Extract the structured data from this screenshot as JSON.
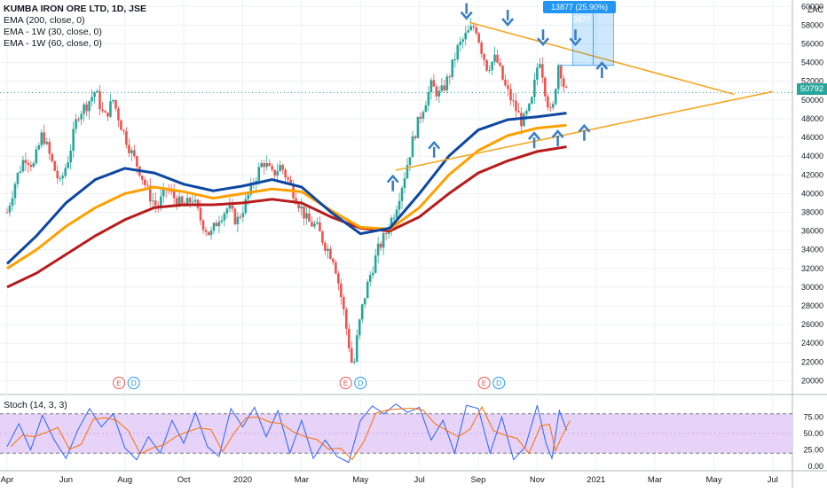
{
  "chart_data": {
    "type": "candlestick",
    "title": "KUMBA IRON ORE LTD, 1D, JSE",
    "currency": "ZAC",
    "indicators": [
      "EMA (200, close, 0)",
      "EMA - 1W (30, close, 0)",
      "EMA - 1W (60, close, 0)"
    ],
    "last_price": "50792",
    "measure_label": "13877 (25.90%) 13877",
    "price_axis": {
      "ticks": [
        "60000",
        "58000",
        "56000",
        "54000",
        "52000",
        "50000",
        "48000",
        "46000",
        "44000",
        "42000",
        "40000",
        "38000",
        "36000",
        "34000",
        "32000",
        "30000",
        "28000",
        "26000",
        "24000",
        "22000",
        "20000"
      ],
      "ylim": [
        19000,
        60500
      ]
    },
    "time_axis": [
      "Apr",
      "Jun",
      "Aug",
      "Oct",
      "2020",
      "Mar",
      "May",
      "Jul",
      "Sep",
      "Nov",
      "2021",
      "Mar",
      "May",
      "Jul"
    ],
    "earnings_markers": [
      {
        "label": "E",
        "month": 3.8
      },
      {
        "label": "D",
        "month": 4.3
      },
      {
        "label": "E",
        "month": 11.5
      },
      {
        "label": "D",
        "month": 12.0
      },
      {
        "label": "E",
        "month": 16.2
      },
      {
        "label": "D",
        "month": 16.7
      }
    ],
    "price_path": [
      [
        0.0,
        38000
      ],
      [
        0.3,
        41500
      ],
      [
        0.6,
        44000
      ],
      [
        0.9,
        43000
      ],
      [
        1.2,
        46500
      ],
      [
        1.5,
        43500
      ],
      [
        1.8,
        41000
      ],
      [
        2.1,
        44000
      ],
      [
        2.4,
        48500
      ],
      [
        2.7,
        49500
      ],
      [
        3.0,
        51000
      ],
      [
        3.3,
        48000
      ],
      [
        3.6,
        50000
      ],
      [
        3.9,
        47000
      ],
      [
        4.2,
        44500
      ],
      [
        4.5,
        42500
      ],
      [
        4.8,
        40000
      ],
      [
        5.1,
        38500
      ],
      [
        5.4,
        40500
      ],
      [
        5.7,
        39500
      ],
      [
        6.0,
        38500
      ],
      [
        6.3,
        39500
      ],
      [
        6.6,
        37000
      ],
      [
        6.9,
        35500
      ],
      [
        7.2,
        37500
      ],
      [
        7.5,
        38500
      ],
      [
        7.8,
        37000
      ],
      [
        8.1,
        39000
      ],
      [
        8.4,
        41500
      ],
      [
        8.7,
        43500
      ],
      [
        9.0,
        42000
      ],
      [
        9.3,
        43000
      ],
      [
        9.6,
        41000
      ],
      [
        9.9,
        39000
      ],
      [
        10.2,
        37000
      ],
      [
        10.5,
        36500
      ],
      [
        10.8,
        34500
      ],
      [
        11.1,
        33000
      ],
      [
        11.4,
        28000
      ],
      [
        11.6,
        24000
      ],
      [
        11.75,
        21000
      ],
      [
        11.9,
        25000
      ],
      [
        12.1,
        28500
      ],
      [
        12.3,
        31000
      ],
      [
        12.6,
        34000
      ],
      [
        12.9,
        36000
      ],
      [
        13.2,
        38500
      ],
      [
        13.5,
        42000
      ],
      [
        13.8,
        46000
      ],
      [
        14.1,
        49000
      ],
      [
        14.4,
        51500
      ],
      [
        14.7,
        50500
      ],
      [
        15.0,
        52500
      ],
      [
        15.3,
        55500
      ],
      [
        15.6,
        57000
      ],
      [
        15.9,
        58000
      ],
      [
        16.1,
        55500
      ],
      [
        16.3,
        53500
      ],
      [
        16.6,
        54500
      ],
      [
        16.9,
        51500
      ],
      [
        17.2,
        49500
      ],
      [
        17.5,
        47500
      ],
      [
        17.8,
        49500
      ],
      [
        18.0,
        53500
      ],
      [
        18.1,
        54500
      ],
      [
        18.3,
        50500
      ],
      [
        18.5,
        48000
      ],
      [
        18.6,
        51000
      ],
      [
        18.75,
        54500
      ],
      [
        18.85,
        52000
      ],
      [
        19.0,
        50792
      ]
    ],
    "ema_200": [
      [
        0,
        30000
      ],
      [
        1,
        31500
      ],
      [
        2,
        33500
      ],
      [
        3,
        35500
      ],
      [
        4,
        37200
      ],
      [
        5,
        38500
      ],
      [
        6,
        38800
      ],
      [
        7,
        38800
      ],
      [
        8,
        39000
      ],
      [
        9,
        39400
      ],
      [
        10,
        39000
      ],
      [
        11,
        37500
      ],
      [
        12,
        36300
      ],
      [
        13,
        36000
      ],
      [
        14,
        37500
      ],
      [
        15,
        40000
      ],
      [
        16,
        42200
      ],
      [
        17,
        43500
      ],
      [
        18,
        44500
      ],
      [
        19,
        45000
      ]
    ],
    "ema_1w_30": [
      [
        0,
        32000
      ],
      [
        1,
        34000
      ],
      [
        2,
        36500
      ],
      [
        3,
        38500
      ],
      [
        4,
        40000
      ],
      [
        5,
        40700
      ],
      [
        6,
        40200
      ],
      [
        7,
        39500
      ],
      [
        8,
        40000
      ],
      [
        9,
        40500
      ],
      [
        10,
        40200
      ],
      [
        11,
        38200
      ],
      [
        12,
        36400
      ],
      [
        13,
        36200
      ],
      [
        14,
        38500
      ],
      [
        15,
        42000
      ],
      [
        16,
        44600
      ],
      [
        17,
        46200
      ],
      [
        18,
        47000
      ],
      [
        19,
        47300
      ]
    ],
    "ema_1w_60": [
      [
        0,
        32500
      ],
      [
        1,
        35500
      ],
      [
        2,
        39000
      ],
      [
        3,
        41500
      ],
      [
        4,
        42700
      ],
      [
        5,
        42200
      ],
      [
        6,
        41000
      ],
      [
        7,
        40300
      ],
      [
        8,
        40800
      ],
      [
        9,
        41500
      ],
      [
        10,
        40700
      ],
      [
        11,
        38000
      ],
      [
        12,
        35700
      ],
      [
        13,
        36300
      ],
      [
        14,
        40000
      ],
      [
        15,
        44000
      ],
      [
        16,
        46800
      ],
      [
        17,
        47900
      ],
      [
        18,
        48200
      ],
      [
        19,
        48600
      ]
    ],
    "stoch_axis": {
      "ticks": [
        "75.00",
        "50.00",
        "25.00",
        "0.00"
      ],
      "ylim": [
        0,
        100
      ],
      "bands": [
        20,
        80
      ]
    },
    "stoch_k": [
      [
        0.0,
        30
      ],
      [
        0.4,
        65
      ],
      [
        0.8,
        25
      ],
      [
        1.2,
        78
      ],
      [
        1.6,
        40
      ],
      [
        2.0,
        12
      ],
      [
        2.4,
        55
      ],
      [
        2.8,
        88
      ],
      [
        3.2,
        60
      ],
      [
        3.6,
        80
      ],
      [
        4.0,
        28
      ],
      [
        4.4,
        10
      ],
      [
        4.8,
        45
      ],
      [
        5.2,
        20
      ],
      [
        5.6,
        70
      ],
      [
        6.0,
        35
      ],
      [
        6.4,
        82
      ],
      [
        6.8,
        30
      ],
      [
        7.2,
        15
      ],
      [
        7.6,
        88
      ],
      [
        8.0,
        60
      ],
      [
        8.4,
        90
      ],
      [
        8.8,
        45
      ],
      [
        9.2,
        85
      ],
      [
        9.6,
        20
      ],
      [
        10.0,
        70
      ],
      [
        10.4,
        12
      ],
      [
        10.8,
        40
      ],
      [
        11.2,
        15
      ],
      [
        11.6,
        6
      ],
      [
        12.0,
        70
      ],
      [
        12.4,
        92
      ],
      [
        12.8,
        80
      ],
      [
        13.2,
        95
      ],
      [
        13.6,
        82
      ],
      [
        14.0,
        90
      ],
      [
        14.4,
        40
      ],
      [
        14.8,
        70
      ],
      [
        15.2,
        20
      ],
      [
        15.6,
        93
      ],
      [
        16.0,
        88
      ],
      [
        16.4,
        20
      ],
      [
        16.8,
        75
      ],
      [
        17.2,
        10
      ],
      [
        17.6,
        30
      ],
      [
        18.0,
        93
      ],
      [
        18.3,
        35
      ],
      [
        18.5,
        12
      ],
      [
        18.75,
        85
      ],
      [
        19.0,
        55
      ]
    ]
  }
}
